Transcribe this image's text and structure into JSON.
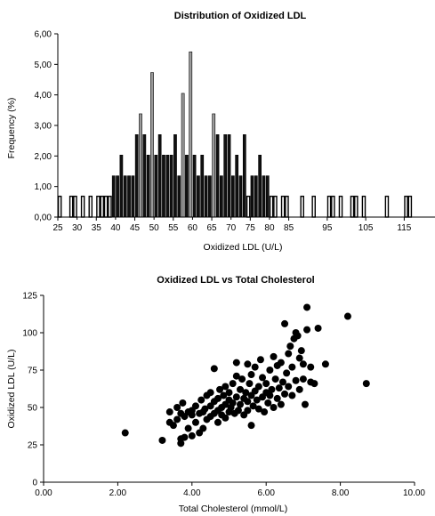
{
  "chart_data": [
    {
      "type": "bar",
      "title": "Distribution of Oxidized LDL",
      "xlabel": "Oxidized LDL (U/L)",
      "ylabel": "Frequency (%)",
      "xlim": [
        25,
        123
      ],
      "ylim": [
        0,
        6
      ],
      "xticks": [
        "25",
        "35",
        "45",
        "55",
        "65",
        "75",
        "85",
        "95",
        "105",
        "115"
      ],
      "xtick_values": [
        25,
        35,
        45,
        55,
        65,
        75,
        85,
        95,
        105,
        115
      ],
      "xticks_odd": [
        "30",
        "40",
        "50",
        "60",
        "70",
        "80"
      ],
      "xtick_odd_values": [
        30,
        40,
        50,
        60,
        70,
        80
      ],
      "yticks": [
        "0,00",
        "1,00",
        "2,00",
        "3,00",
        "4,00",
        "5,00",
        "6,00"
      ],
      "ytick_values": [
        0,
        1,
        2,
        3,
        4,
        5,
        6
      ],
      "bin_width": 1,
      "bins": [
        {
          "x": 25,
          "value": 0.68
        },
        {
          "x": 28,
          "value": 0.68
        },
        {
          "x": 29,
          "value": 0.68
        },
        {
          "x": 31,
          "value": 0.68
        },
        {
          "x": 33,
          "value": 0.68
        },
        {
          "x": 35,
          "value": 0.68
        },
        {
          "x": 36,
          "value": 0.68
        },
        {
          "x": 37,
          "value": 0.68
        },
        {
          "x": 38,
          "value": 0.68
        },
        {
          "x": 39,
          "value": 1.35
        },
        {
          "x": 40,
          "value": 1.35
        },
        {
          "x": 41,
          "value": 2.03
        },
        {
          "x": 42,
          "value": 1.35
        },
        {
          "x": 43,
          "value": 1.35
        },
        {
          "x": 44,
          "value": 1.35
        },
        {
          "x": 45,
          "value": 2.7
        },
        {
          "x": 46,
          "value": 3.38
        },
        {
          "x": 47,
          "value": 2.7
        },
        {
          "x": 48,
          "value": 2.03
        },
        {
          "x": 49,
          "value": 4.73
        },
        {
          "x": 50,
          "value": 2.03
        },
        {
          "x": 51,
          "value": 2.7
        },
        {
          "x": 52,
          "value": 2.03
        },
        {
          "x": 53,
          "value": 2.03
        },
        {
          "x": 54,
          "value": 2.03
        },
        {
          "x": 55,
          "value": 2.7
        },
        {
          "x": 56,
          "value": 1.35
        },
        {
          "x": 57,
          "value": 4.05
        },
        {
          "x": 58,
          "value": 2.03
        },
        {
          "x": 59,
          "value": 5.41
        },
        {
          "x": 60,
          "value": 2.03
        },
        {
          "x": 61,
          "value": 1.35
        },
        {
          "x": 62,
          "value": 2.03
        },
        {
          "x": 63,
          "value": 1.35
        },
        {
          "x": 64,
          "value": 1.35
        },
        {
          "x": 65,
          "value": 3.38
        },
        {
          "x": 66,
          "value": 2.7
        },
        {
          "x": 67,
          "value": 1.35
        },
        {
          "x": 68,
          "value": 2.7
        },
        {
          "x": 69,
          "value": 2.7
        },
        {
          "x": 70,
          "value": 1.35
        },
        {
          "x": 71,
          "value": 2.03
        },
        {
          "x": 72,
          "value": 1.35
        },
        {
          "x": 73,
          "value": 2.7
        },
        {
          "x": 74,
          "value": 0.68
        },
        {
          "x": 75,
          "value": 1.35
        },
        {
          "x": 76,
          "value": 1.35
        },
        {
          "x": 77,
          "value": 2.03
        },
        {
          "x": 78,
          "value": 1.35
        },
        {
          "x": 79,
          "value": 1.35
        },
        {
          "x": 80,
          "value": 0.68
        },
        {
          "x": 81,
          "value": 0.68
        },
        {
          "x": 83,
          "value": 0.68
        },
        {
          "x": 84,
          "value": 0.68
        },
        {
          "x": 88,
          "value": 0.68
        },
        {
          "x": 91,
          "value": 0.68
        },
        {
          "x": 95,
          "value": 0.68
        },
        {
          "x": 96,
          "value": 0.68
        },
        {
          "x": 98,
          "value": 0.68
        },
        {
          "x": 101,
          "value": 0.68
        },
        {
          "x": 102,
          "value": 0.68
        },
        {
          "x": 104,
          "value": 0.68
        },
        {
          "x": 110,
          "value": 0.68
        },
        {
          "x": 115,
          "value": 0.68
        },
        {
          "x": 116,
          "value": 0.68
        }
      ]
    },
    {
      "type": "scatter",
      "title": "Oxidized LDL vs Total Cholesterol",
      "xlabel": "Total Cholesterol (mmol/L)",
      "ylabel": "Oxidized LDL (U/L)",
      "xlim": [
        0,
        10
      ],
      "ylim": [
        0,
        125
      ],
      "xticks": [
        "0.00",
        "2.00",
        "4.00",
        "6.00",
        "8.00",
        "10.00"
      ],
      "xtick_values": [
        0,
        2,
        4,
        6,
        8,
        10
      ],
      "yticks": [
        "0",
        "25",
        "50",
        "75",
        "100",
        "125"
      ],
      "ytick_values": [
        0,
        25,
        50,
        75,
        100,
        125
      ],
      "points": [
        [
          2.2,
          33
        ],
        [
          3.2,
          28
        ],
        [
          3.4,
          40
        ],
        [
          3.4,
          47
        ],
        [
          3.5,
          38
        ],
        [
          3.6,
          42
        ],
        [
          3.6,
          50
        ],
        [
          3.7,
          29
        ],
        [
          3.7,
          26
        ],
        [
          3.7,
          46
        ],
        [
          3.75,
          53
        ],
        [
          3.8,
          30
        ],
        [
          3.8,
          44
        ],
        [
          3.9,
          47
        ],
        [
          3.9,
          36
        ],
        [
          4.0,
          31
        ],
        [
          4.0,
          45
        ],
        [
          4.0,
          48
        ],
        [
          4.1,
          51
        ],
        [
          4.1,
          40
        ],
        [
          4.2,
          33
        ],
        [
          4.2,
          46
        ],
        [
          4.25,
          55
        ],
        [
          4.3,
          47
        ],
        [
          4.3,
          36
        ],
        [
          4.35,
          49
        ],
        [
          4.4,
          42
        ],
        [
          4.4,
          58
        ],
        [
          4.5,
          44
        ],
        [
          4.5,
          51
        ],
        [
          4.5,
          60
        ],
        [
          4.6,
          46
        ],
        [
          4.6,
          54
        ],
        [
          4.6,
          76
        ],
        [
          4.7,
          48
        ],
        [
          4.7,
          56
        ],
        [
          4.7,
          40
        ],
        [
          4.75,
          62
        ],
        [
          4.8,
          50
        ],
        [
          4.8,
          45
        ],
        [
          4.85,
          58
        ],
        [
          4.9,
          52
        ],
        [
          4.9,
          64
        ],
        [
          4.9,
          43
        ],
        [
          5.0,
          47
        ],
        [
          5.0,
          55
        ],
        [
          5.0,
          60
        ],
        [
          5.05,
          50
        ],
        [
          5.1,
          66
        ],
        [
          5.1,
          53
        ],
        [
          5.15,
          46
        ],
        [
          5.2,
          57
        ],
        [
          5.2,
          80
        ],
        [
          5.2,
          71
        ],
        [
          5.25,
          48
        ],
        [
          5.3,
          62
        ],
        [
          5.3,
          52
        ],
        [
          5.35,
          69
        ],
        [
          5.4,
          56
        ],
        [
          5.4,
          45
        ],
        [
          5.45,
          60
        ],
        [
          5.5,
          79
        ],
        [
          5.5,
          54
        ],
        [
          5.5,
          48
        ],
        [
          5.55,
          66
        ],
        [
          5.6,
          58
        ],
        [
          5.6,
          72
        ],
        [
          5.65,
          51
        ],
        [
          5.7,
          61
        ],
        [
          5.7,
          77
        ],
        [
          5.75,
          55
        ],
        [
          5.8,
          49
        ],
        [
          5.8,
          64
        ],
        [
          5.85,
          82
        ],
        [
          5.9,
          57
        ],
        [
          5.9,
          70
        ],
        [
          5.95,
          47
        ],
        [
          6.0,
          60
        ],
        [
          6.0,
          66
        ],
        [
          6.05,
          53
        ],
        [
          6.1,
          75
        ],
        [
          6.1,
          58
        ],
        [
          6.15,
          62
        ],
        [
          6.2,
          84
        ],
        [
          6.2,
          50
        ],
        [
          6.25,
          69
        ],
        [
          6.3,
          56
        ],
        [
          6.3,
          78
        ],
        [
          6.35,
          63
        ],
        [
          6.4,
          52
        ],
        [
          6.4,
          80
        ],
        [
          6.45,
          67
        ],
        [
          6.5,
          106
        ],
        [
          6.5,
          59
        ],
        [
          6.55,
          73
        ],
        [
          6.6,
          64
        ],
        [
          6.65,
          91
        ],
        [
          6.7,
          58
        ],
        [
          6.7,
          77
        ],
        [
          6.75,
          96
        ],
        [
          6.8,
          100
        ],
        [
          6.8,
          68
        ],
        [
          6.85,
          98
        ],
        [
          6.9,
          83
        ],
        [
          6.9,
          62
        ],
        [
          7.0,
          79
        ],
        [
          7.0,
          69
        ],
        [
          7.05,
          52
        ],
        [
          7.1,
          117
        ],
        [
          7.1,
          102
        ],
        [
          7.2,
          67
        ],
        [
          7.2,
          77
        ],
        [
          7.3,
          66
        ],
        [
          7.4,
          103
        ],
        [
          7.6,
          79
        ],
        [
          8.2,
          111
        ],
        [
          8.7,
          66
        ],
        [
          6.95,
          88
        ],
        [
          6.6,
          86
        ],
        [
          5.6,
          38
        ]
      ]
    }
  ]
}
